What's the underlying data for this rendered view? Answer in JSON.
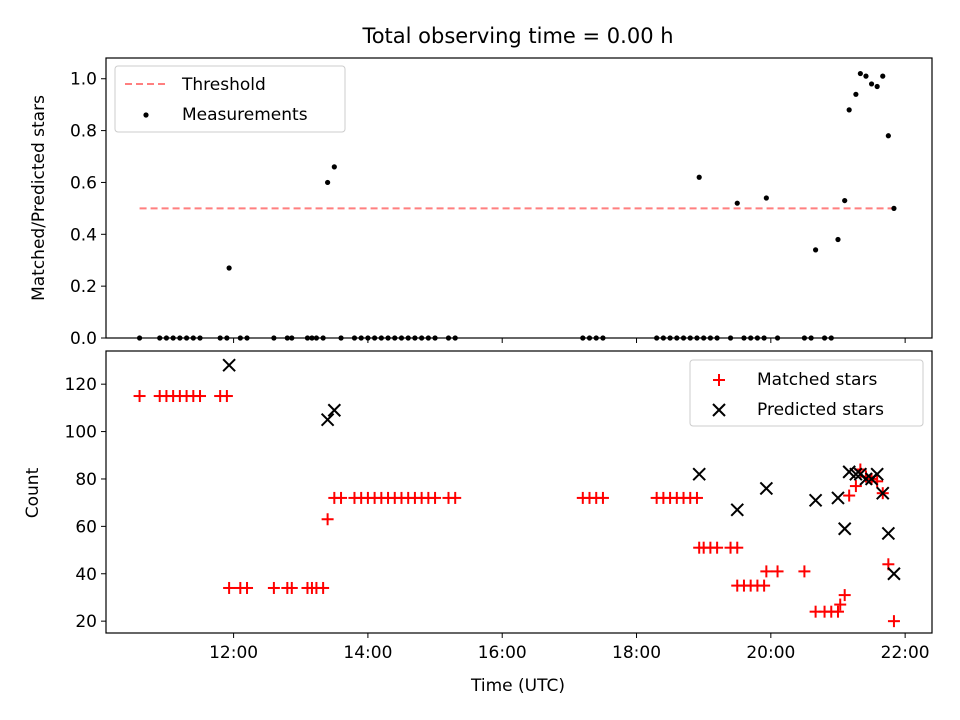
{
  "chart_data": [
    {
      "type": "scatter",
      "title": "Total observing time = 0.00 h",
      "xlabel": "",
      "ylabel": "Matched/Predicted stars",
      "xlim": [
        "10:06",
        "22:24"
      ],
      "ylim": [
        0,
        1.08
      ],
      "xticks": [
        "12:00",
        "14:00",
        "16:00",
        "18:00",
        "20:00",
        "22:00"
      ],
      "yticks": [
        "0.0",
        "0.2",
        "0.4",
        "0.6",
        "0.8",
        "1.0"
      ],
      "legend_position": "upper left",
      "series": [
        {
          "name": "Threshold",
          "kind": "line",
          "style": "dashed",
          "color": "#ff7f7f",
          "points": [
            [
              "10:36",
              0.5
            ],
            [
              "21:50",
              0.5
            ]
          ]
        },
        {
          "name": "Measurements",
          "kind": "scatter",
          "marker": "dot",
          "color": "#000000",
          "points": [
            [
              "10:36",
              0
            ],
            [
              "10:54",
              0
            ],
            [
              "11:00",
              0
            ],
            [
              "11:06",
              0
            ],
            [
              "11:12",
              0
            ],
            [
              "11:18",
              0
            ],
            [
              "11:24",
              0
            ],
            [
              "11:30",
              0
            ],
            [
              "11:48",
              0
            ],
            [
              "11:54",
              0
            ],
            [
              "11:56",
              0.27
            ],
            [
              "12:06",
              0
            ],
            [
              "12:12",
              0
            ],
            [
              "12:36",
              0
            ],
            [
              "12:48",
              0
            ],
            [
              "12:52",
              0
            ],
            [
              "13:06",
              0
            ],
            [
              "13:10",
              0
            ],
            [
              "13:14",
              0
            ],
            [
              "13:20",
              0
            ],
            [
              "13:24",
              0.6
            ],
            [
              "13:30",
              0.66
            ],
            [
              "13:36",
              0
            ],
            [
              "13:48",
              0
            ],
            [
              "13:54",
              0
            ],
            [
              "14:00",
              0
            ],
            [
              "14:06",
              0
            ],
            [
              "14:12",
              0
            ],
            [
              "14:18",
              0
            ],
            [
              "14:24",
              0
            ],
            [
              "14:30",
              0
            ],
            [
              "14:36",
              0
            ],
            [
              "14:42",
              0
            ],
            [
              "14:48",
              0
            ],
            [
              "14:54",
              0
            ],
            [
              "15:00",
              0
            ],
            [
              "15:12",
              0
            ],
            [
              "15:18",
              0
            ],
            [
              "17:12",
              0
            ],
            [
              "17:18",
              0
            ],
            [
              "17:24",
              0
            ],
            [
              "17:30",
              0
            ],
            [
              "18:18",
              0
            ],
            [
              "18:24",
              0
            ],
            [
              "18:30",
              0
            ],
            [
              "18:36",
              0
            ],
            [
              "18:42",
              0
            ],
            [
              "18:48",
              0
            ],
            [
              "18:54",
              0
            ],
            [
              "18:56",
              0.62
            ],
            [
              "19:00",
              0
            ],
            [
              "19:06",
              0
            ],
            [
              "19:12",
              0
            ],
            [
              "19:24",
              0
            ],
            [
              "19:30",
              0.52
            ],
            [
              "19:36",
              0
            ],
            [
              "19:42",
              0
            ],
            [
              "19:48",
              0
            ],
            [
              "19:54",
              0
            ],
            [
              "19:56",
              0.54
            ],
            [
              "20:06",
              0
            ],
            [
              "20:30",
              0
            ],
            [
              "20:36",
              0
            ],
            [
              "20:40",
              0.34
            ],
            [
              "20:48",
              0
            ],
            [
              "20:54",
              0
            ],
            [
              "21:00",
              0.38
            ],
            [
              "21:06",
              0.53
            ],
            [
              "21:10",
              0.88
            ],
            [
              "21:16",
              0.94
            ],
            [
              "21:20",
              1.02
            ],
            [
              "21:25",
              1.01
            ],
            [
              "21:30",
              0.98
            ],
            [
              "21:35",
              0.97
            ],
            [
              "21:40",
              1.01
            ],
            [
              "21:45",
              0.78
            ],
            [
              "21:50",
              0.5
            ]
          ]
        }
      ]
    },
    {
      "type": "scatter",
      "title": "",
      "xlabel": "Time (UTC)",
      "ylabel": "Count",
      "xlim": [
        "10:06",
        "22:24"
      ],
      "ylim": [
        15,
        134
      ],
      "xticks": [
        "12:00",
        "14:00",
        "16:00",
        "18:00",
        "20:00",
        "22:00"
      ],
      "yticks": [
        "20",
        "40",
        "60",
        "80",
        "100",
        "120"
      ],
      "legend_position": "upper right",
      "series": [
        {
          "name": "Matched stars",
          "kind": "scatter",
          "marker": "plus",
          "color": "#ff0000",
          "points": [
            [
              "10:36",
              115
            ],
            [
              "10:54",
              115
            ],
            [
              "11:00",
              115
            ],
            [
              "11:06",
              115
            ],
            [
              "11:12",
              115
            ],
            [
              "11:18",
              115
            ],
            [
              "11:24",
              115
            ],
            [
              "11:30",
              115
            ],
            [
              "11:48",
              115
            ],
            [
              "11:54",
              115
            ],
            [
              "11:56",
              34
            ],
            [
              "12:06",
              34
            ],
            [
              "12:12",
              34
            ],
            [
              "12:36",
              34
            ],
            [
              "12:48",
              34
            ],
            [
              "12:52",
              34
            ],
            [
              "13:06",
              34
            ],
            [
              "13:10",
              34
            ],
            [
              "13:14",
              34
            ],
            [
              "13:20",
              34
            ],
            [
              "13:24",
              63
            ],
            [
              "13:30",
              72
            ],
            [
              "13:36",
              72
            ],
            [
              "13:48",
              72
            ],
            [
              "13:54",
              72
            ],
            [
              "14:00",
              72
            ],
            [
              "14:06",
              72
            ],
            [
              "14:12",
              72
            ],
            [
              "14:18",
              72
            ],
            [
              "14:24",
              72
            ],
            [
              "14:30",
              72
            ],
            [
              "14:36",
              72
            ],
            [
              "14:42",
              72
            ],
            [
              "14:48",
              72
            ],
            [
              "14:54",
              72
            ],
            [
              "15:00",
              72
            ],
            [
              "15:12",
              72
            ],
            [
              "15:18",
              72
            ],
            [
              "17:12",
              72
            ],
            [
              "17:18",
              72
            ],
            [
              "17:24",
              72
            ],
            [
              "17:30",
              72
            ],
            [
              "18:18",
              72
            ],
            [
              "18:24",
              72
            ],
            [
              "18:30",
              72
            ],
            [
              "18:36",
              72
            ],
            [
              "18:42",
              72
            ],
            [
              "18:48",
              72
            ],
            [
              "18:54",
              72
            ],
            [
              "18:56",
              51
            ],
            [
              "19:00",
              51
            ],
            [
              "19:06",
              51
            ],
            [
              "19:12",
              51
            ],
            [
              "19:24",
              51
            ],
            [
              "19:30",
              51
            ],
            [
              "19:30",
              35
            ],
            [
              "19:36",
              35
            ],
            [
              "19:42",
              35
            ],
            [
              "19:48",
              35
            ],
            [
              "19:54",
              35
            ],
            [
              "19:56",
              41
            ],
            [
              "20:06",
              41
            ],
            [
              "20:30",
              41
            ],
            [
              "20:40",
              24
            ],
            [
              "20:48",
              24
            ],
            [
              "20:54",
              24
            ],
            [
              "21:00",
              24
            ],
            [
              "21:02",
              27
            ],
            [
              "21:06",
              31
            ],
            [
              "21:10",
              73
            ],
            [
              "21:16",
              77
            ],
            [
              "21:20",
              84
            ],
            [
              "21:25",
              81
            ],
            [
              "21:30",
              80
            ],
            [
              "21:35",
              79
            ],
            [
              "21:40",
              74
            ],
            [
              "21:45",
              44
            ],
            [
              "21:50",
              20
            ]
          ]
        },
        {
          "name": "Predicted stars",
          "kind": "scatter",
          "marker": "x",
          "color": "#000000",
          "points": [
            [
              "11:56",
              128
            ],
            [
              "13:24",
              105
            ],
            [
              "13:30",
              109
            ],
            [
              "18:56",
              82
            ],
            [
              "19:30",
              67
            ],
            [
              "19:56",
              76
            ],
            [
              "20:40",
              71
            ],
            [
              "21:00",
              72
            ],
            [
              "21:06",
              59
            ],
            [
              "21:10",
              83
            ],
            [
              "21:16",
              82
            ],
            [
              "21:20",
              82
            ],
            [
              "21:25",
              80
            ],
            [
              "21:30",
              80
            ],
            [
              "21:35",
              82
            ],
            [
              "21:40",
              74
            ],
            [
              "21:45",
              57
            ],
            [
              "21:50",
              40
            ]
          ]
        }
      ]
    }
  ]
}
